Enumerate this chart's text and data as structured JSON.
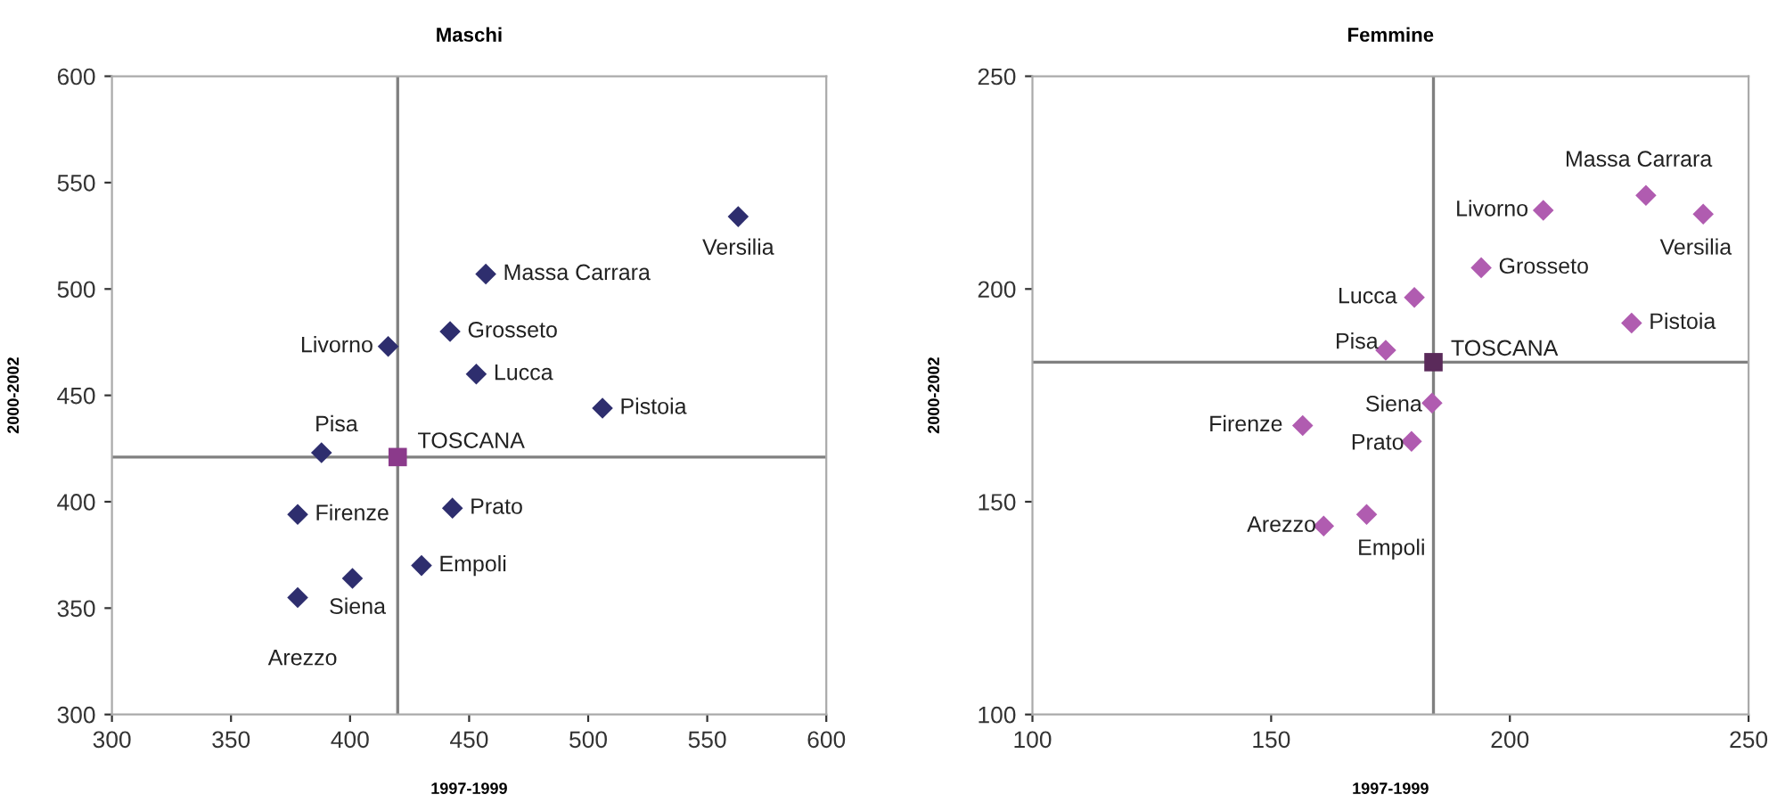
{
  "chart_data": [
    {
      "type": "scatter",
      "title": "Maschi",
      "xlabel": "1997-1999",
      "ylabel": "2000-2002",
      "xlim": [
        300,
        600
      ],
      "ylim": [
        300,
        600
      ],
      "xticks": [
        300,
        350,
        400,
        450,
        500,
        550,
        600
      ],
      "yticks": [
        300,
        350,
        400,
        450,
        500,
        550,
        600
      ],
      "grid": false,
      "legend": false,
      "series": [
        {
          "color": "#2e2e6e",
          "marker": "diamond",
          "x": [
            563,
            457,
            442,
            416,
            453,
            506,
            388,
            443,
            378,
            430,
            401,
            378
          ],
          "values": [
            534,
            507,
            480,
            473,
            460,
            444,
            423,
            397,
            394,
            370,
            364,
            355
          ]
        },
        {
          "color": "#8b3a8b",
          "marker": "square",
          "x": [
            420
          ],
          "values": [
            421
          ]
        }
      ],
      "ref_lines": [
        {
          "axis": "x",
          "value": 420,
          "color": "#808080"
        },
        {
          "axis": "y",
          "value": 421,
          "color": "#808080"
        }
      ],
      "annotations": [
        {
          "text": "Versilia",
          "x": 563,
          "y": 534
        },
        {
          "text": "Massa Carrara",
          "x": 457,
          "y": 507
        },
        {
          "text": "Grosseto",
          "x": 442,
          "y": 480
        },
        {
          "text": "Livorno",
          "x": 416,
          "y": 473
        },
        {
          "text": "Lucca",
          "x": 453,
          "y": 460
        },
        {
          "text": "Pistoia",
          "x": 506,
          "y": 444
        },
        {
          "text": "Pisa",
          "x": 388,
          "y": 423
        },
        {
          "text": "TOSCANA",
          "x": 420,
          "y": 421
        },
        {
          "text": "Prato",
          "x": 443,
          "y": 397
        },
        {
          "text": "Firenze",
          "x": 378,
          "y": 394
        },
        {
          "text": "Empoli",
          "x": 430,
          "y": 370
        },
        {
          "text": "Siena",
          "x": 401,
          "y": 364
        },
        {
          "text": "Arezzo",
          "x": 378,
          "y": 355
        }
      ]
    },
    {
      "type": "scatter",
      "title": "Femmine",
      "xlabel": "1997-1999",
      "ylabel": "2000-2002",
      "xlim": [
        100,
        250
      ],
      "ylim": [
        100,
        250
      ],
      "xticks": [
        100,
        150,
        200,
        250
      ],
      "yticks": [
        100,
        150,
        200,
        250
      ],
      "grid": false,
      "legend": false,
      "series": [
        {
          "color": "#b05cb0",
          "marker": "diamond",
          "x": [
            228.5,
            240.5,
            207,
            194,
            180,
            225.5,
            174,
            183.7,
            156.6,
            179.4,
            170,
            161
          ],
          "values": [
            222,
            217.6,
            218.5,
            205,
            198,
            192,
            185.6,
            173.2,
            167.9,
            164.2,
            147,
            144.3
          ]
        },
        {
          "color": "#5a2a5a",
          "marker": "square",
          "x": [
            184
          ],
          "values": [
            182.8
          ]
        }
      ],
      "ref_lines": [
        {
          "axis": "x",
          "value": 184,
          "color": "#808080"
        },
        {
          "axis": "y",
          "value": 182.8,
          "color": "#808080"
        }
      ],
      "annotations": [
        {
          "text": "Massa Carrara",
          "x": 228.5,
          "y": 222
        },
        {
          "text": "Versilia",
          "x": 240.5,
          "y": 217.6
        },
        {
          "text": "Livorno",
          "x": 207,
          "y": 218.5
        },
        {
          "text": "Grosseto",
          "x": 194,
          "y": 205
        },
        {
          "text": "Lucca",
          "x": 180,
          "y": 198
        },
        {
          "text": "Pistoia",
          "x": 225.5,
          "y": 192
        },
        {
          "text": "Pisa",
          "x": 174,
          "y": 185.6
        },
        {
          "text": "TOSCANA",
          "x": 184,
          "y": 182.8
        },
        {
          "text": "Siena",
          "x": 183.7,
          "y": 173.2
        },
        {
          "text": "Firenze",
          "x": 156.6,
          "y": 167.9
        },
        {
          "text": "Prato",
          "x": 179.4,
          "y": 164.2
        },
        {
          "text": "Empoli",
          "x": 170,
          "y": 147
        },
        {
          "text": "Arezzo",
          "x": 161,
          "y": 144.3
        }
      ]
    }
  ]
}
